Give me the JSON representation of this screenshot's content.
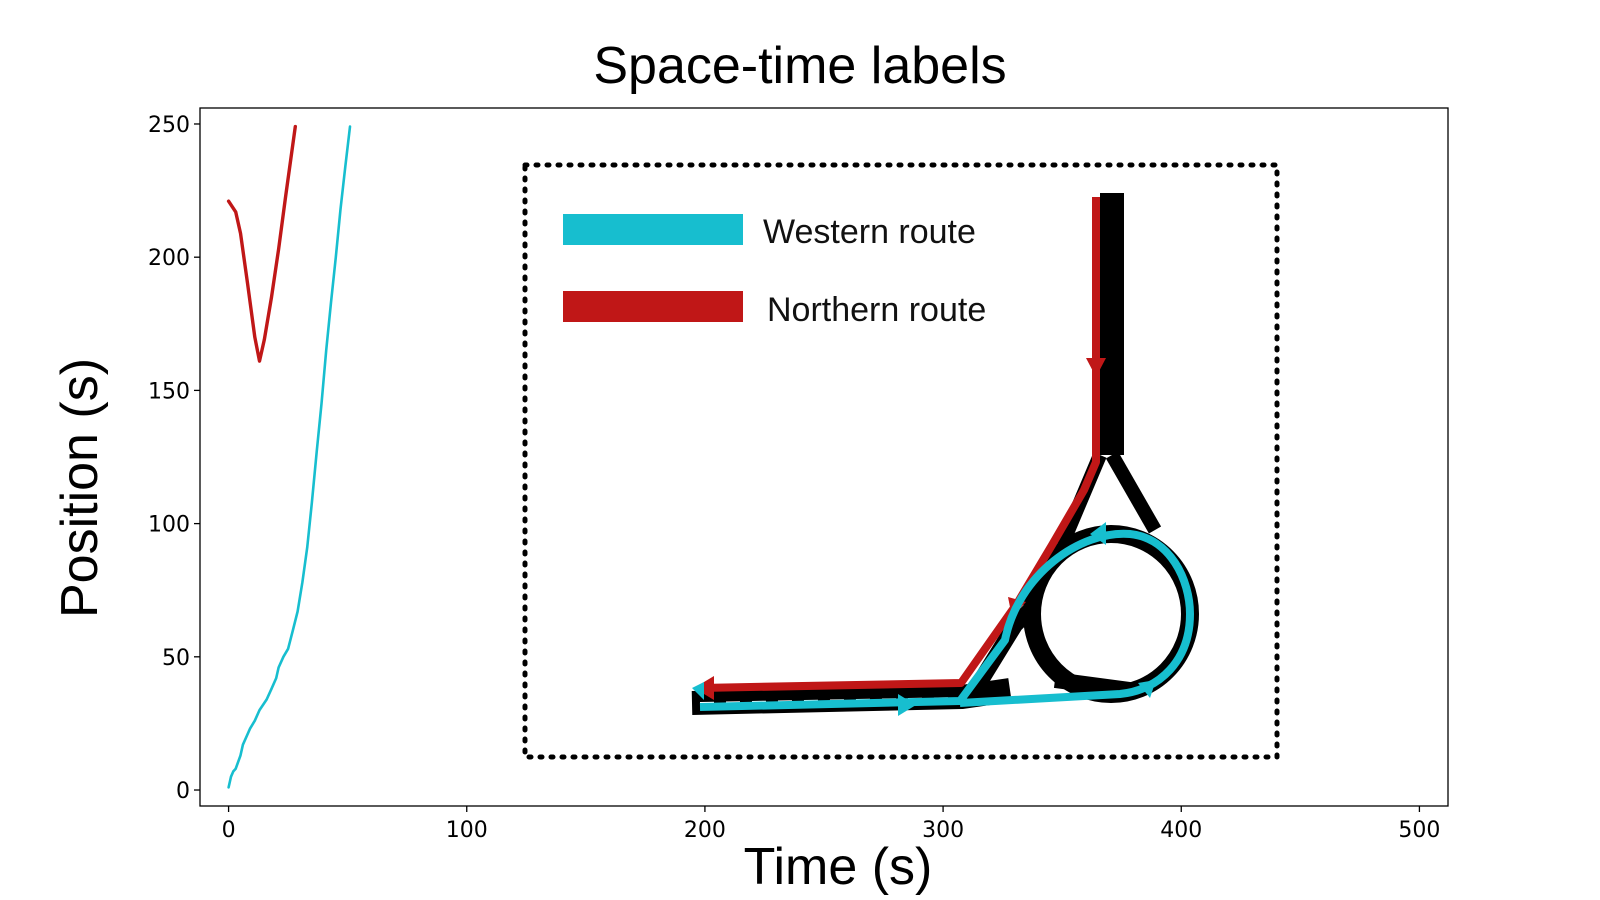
{
  "chart_data": {
    "type": "line",
    "title": "Space-time labels",
    "xlabel": "Time (s)",
    "ylabel": "Position (s)",
    "xlim": [
      -12,
      512
    ],
    "ylim": [
      -6,
      256
    ],
    "xticks": [
      0,
      100,
      200,
      300,
      400,
      500
    ],
    "yticks": [
      0,
      50,
      100,
      150,
      200,
      250
    ],
    "grid": false,
    "legend_position": "inset upper-center",
    "series": [
      {
        "name": "Western route",
        "color": "#17becf",
        "x": [
          0,
          1,
          2,
          3,
          5,
          6,
          8,
          9,
          11,
          13,
          16,
          18,
          20,
          21,
          23,
          25,
          27,
          29,
          31,
          33,
          35,
          37,
          39,
          41,
          43,
          45,
          47,
          49,
          51
        ],
        "y": [
          1,
          5,
          7,
          8,
          13,
          17,
          21,
          23,
          26,
          30,
          34,
          38,
          42,
          46,
          50,
          53,
          60,
          67,
          78,
          91,
          108,
          127,
          145,
          165,
          183,
          200,
          218,
          234,
          249
        ]
      },
      {
        "name": "Northern route",
        "color": "#c01717",
        "x": [
          0,
          3,
          5,
          8,
          11,
          13,
          15,
          18,
          21,
          24,
          28
        ],
        "y": [
          221,
          217,
          209,
          190,
          170,
          161,
          169,
          185,
          203,
          223,
          249
        ]
      }
    ]
  },
  "legend": {
    "western_label": "Western route",
    "northern_label": "Northern route"
  },
  "colors": {
    "western": "#17becf",
    "northern": "#c01717",
    "road": "#000000"
  }
}
